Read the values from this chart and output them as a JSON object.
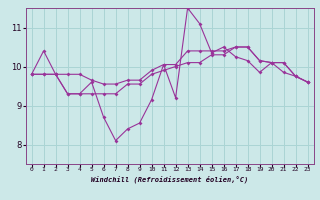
{
  "xlabel": "Windchill (Refroidissement éolien,°C)",
  "background_color": "#cce8e8",
  "grid_color": "#aad4d4",
  "line_color": "#993399",
  "x_ticks": [
    0,
    1,
    2,
    3,
    4,
    5,
    6,
    7,
    8,
    9,
    10,
    11,
    12,
    13,
    14,
    15,
    16,
    17,
    18,
    19,
    20,
    21,
    22,
    23
  ],
  "ylim": [
    7.5,
    11.5
  ],
  "yticks": [
    8,
    9,
    10,
    11
  ],
  "xlim": [
    -0.5,
    23.5
  ],
  "line1": [
    9.8,
    10.4,
    9.8,
    9.3,
    9.3,
    9.6,
    8.7,
    8.1,
    8.4,
    8.55,
    9.15,
    10.05,
    9.2,
    11.5,
    11.1,
    10.35,
    10.5,
    10.25,
    10.15,
    9.85,
    10.1,
    9.85,
    9.75,
    9.6
  ],
  "line2": [
    9.8,
    9.8,
    9.8,
    9.3,
    9.3,
    9.3,
    9.3,
    9.3,
    9.55,
    9.55,
    9.8,
    9.9,
    10.0,
    10.1,
    10.1,
    10.3,
    10.3,
    10.5,
    10.5,
    10.15,
    10.1,
    10.1,
    9.75,
    9.6
  ],
  "line3": [
    9.8,
    9.8,
    9.8,
    9.8,
    9.8,
    9.65,
    9.55,
    9.55,
    9.65,
    9.65,
    9.9,
    10.05,
    10.05,
    10.4,
    10.4,
    10.4,
    10.4,
    10.5,
    10.5,
    10.15,
    10.1,
    10.1,
    9.75,
    9.6
  ]
}
